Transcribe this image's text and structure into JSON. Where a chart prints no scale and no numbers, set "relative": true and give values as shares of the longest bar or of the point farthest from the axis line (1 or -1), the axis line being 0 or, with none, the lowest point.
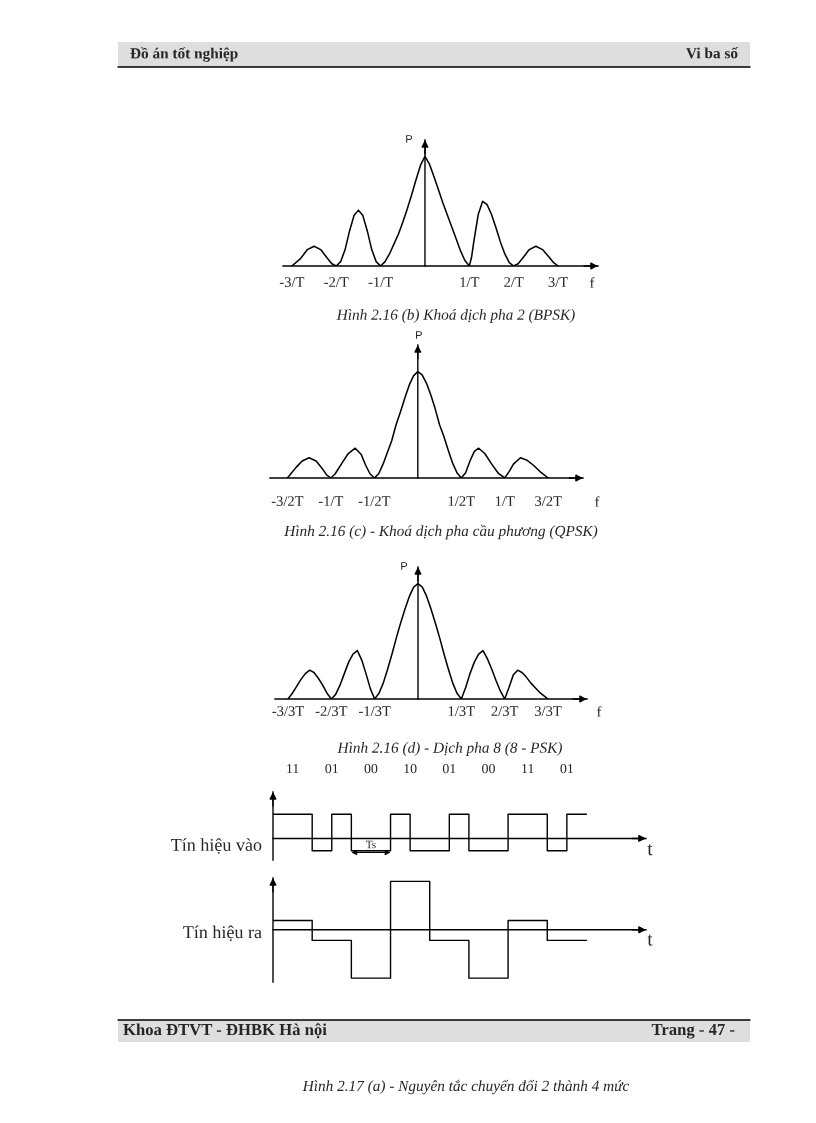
{
  "chart_data": [
    {
      "type": "other",
      "annotations": [
        "Đồ án tốt nghiệp",
        "Vi ba số"
      ]
    },
    {
      "type": "line",
      "title": "Hình 2.16 (b) Khoá dịch pha 2 (BPSK)",
      "xlabel": "f",
      "ylabel": "P",
      "x": [
        -3,
        -2.8,
        -2.65,
        -2.5,
        -2.35,
        -2.2,
        -2.1,
        -2,
        -1.9,
        -1.8,
        -1.7,
        -1.6,
        -1.5,
        -1.4,
        -1.3,
        -1.2,
        -1.1,
        -1,
        -0.9,
        -0.8,
        -0.7,
        -0.6,
        -0.5,
        -0.4,
        -0.3,
        -0.2,
        -0.1,
        0,
        0.1,
        0.2,
        0.3,
        0.4,
        0.5,
        0.6,
        0.7,
        0.8,
        0.9,
        1,
        1.05,
        1.1,
        1.2,
        1.3,
        1.4,
        1.5,
        1.6,
        1.7,
        1.8,
        1.9,
        2,
        2.1,
        2.2,
        2.35,
        2.5,
        2.65,
        2.8,
        2.9,
        3
      ],
      "values": [
        0,
        0.07,
        0.15,
        0.18,
        0.15,
        0.07,
        0.02,
        0,
        0.04,
        0.15,
        0.32,
        0.46,
        0.51,
        0.46,
        0.32,
        0.15,
        0.04,
        0,
        0.04,
        0.11,
        0.2,
        0.29,
        0.4,
        0.52,
        0.65,
        0.79,
        0.92,
        1,
        0.93,
        0.82,
        0.7,
        0.58,
        0.47,
        0.36,
        0.25,
        0.14,
        0.05,
        0,
        0.08,
        0.22,
        0.47,
        0.59,
        0.56,
        0.47,
        0.35,
        0.22,
        0.11,
        0.03,
        0,
        0.02,
        0.07,
        0.15,
        0.18,
        0.15,
        0.08,
        0.03,
        0
      ],
      "color": "#000000",
      "relative": true,
      "xlim": [
        -3.2,
        3.9
      ],
      "xticks": [
        {
          "value": -3,
          "label": "-3/T"
        },
        {
          "value": -2,
          "label": "-2/T"
        },
        {
          "value": -1,
          "label": "-1/T"
        },
        {
          "value": 1,
          "label": "1/T"
        },
        {
          "value": 2,
          "label": "2/T"
        },
        {
          "value": 3,
          "label": "3/T"
        }
      ]
    },
    {
      "type": "line",
      "title": "Hình 2.16 (c) - Khoá dịch pha cầu phương (QPSK)",
      "xlabel": "f",
      "ylabel": "P",
      "x": [
        -1.5,
        -1.4,
        -1.33,
        -1.25,
        -1.17,
        -1.1,
        -1.05,
        -1,
        -0.95,
        -0.88,
        -0.8,
        -0.72,
        -0.65,
        -0.6,
        -0.55,
        -0.5,
        -0.45,
        -0.4,
        -0.35,
        -0.3,
        -0.25,
        -0.2,
        -0.15,
        -0.1,
        -0.05,
        0,
        0.05,
        0.1,
        0.15,
        0.2,
        0.25,
        0.3,
        0.35,
        0.4,
        0.45,
        0.5,
        0.55,
        0.6,
        0.65,
        0.7,
        0.77,
        0.85,
        0.93,
        1,
        1.05,
        1.1,
        1.18,
        1.25,
        1.33,
        1.42,
        1.5
      ],
      "values": [
        0,
        0.1,
        0.16,
        0.19,
        0.16,
        0.09,
        0.03,
        0,
        0.04,
        0.13,
        0.23,
        0.28,
        0.22,
        0.12,
        0.04,
        0,
        0.04,
        0.13,
        0.24,
        0.35,
        0.5,
        0.62,
        0.75,
        0.87,
        0.96,
        1,
        0.97,
        0.89,
        0.78,
        0.65,
        0.5,
        0.39,
        0.26,
        0.14,
        0.05,
        0,
        0.05,
        0.16,
        0.25,
        0.28,
        0.23,
        0.13,
        0.04,
        0,
        0.06,
        0.13,
        0.19,
        0.17,
        0.12,
        0.05,
        0
      ],
      "color": "#000000",
      "relative": true,
      "xlim": [
        -1.7,
        1.9
      ],
      "xticks": [
        {
          "value": -1.5,
          "label": "-3/2T"
        },
        {
          "value": -1,
          "label": "-1/T"
        },
        {
          "value": -0.5,
          "label": "-1/2T"
        },
        {
          "value": 0.5,
          "label": "1/2T"
        },
        {
          "value": 1,
          "label": "1/T"
        },
        {
          "value": 1.5,
          "label": "3/2T"
        }
      ]
    },
    {
      "type": "line",
      "title": "Hình 2.16 (d) - Dịch pha 8 (8 - PSK)",
      "xlabel": "f",
      "ylabel": "P",
      "categories": [
        "-3/3T",
        null,
        null,
        null,
        null,
        null,
        null,
        null,
        null,
        null,
        "-2/3T",
        null,
        null,
        null,
        null,
        null,
        null,
        null,
        null,
        null,
        "-1/3T",
        null,
        null,
        null,
        null,
        null,
        null,
        null,
        null,
        null,
        null,
        null,
        null,
        null,
        null,
        null,
        null,
        null,
        null,
        null,
        "1/3T",
        null,
        null,
        null,
        null,
        null,
        null,
        null,
        null,
        null,
        "2/3T",
        null,
        null,
        null,
        null,
        null,
        null,
        null,
        null,
        null,
        "3/3T"
      ],
      "values": [
        0,
        0.05,
        0.11,
        0.17,
        0.22,
        0.25,
        0.23,
        0.18,
        0.12,
        0.05,
        0,
        0.04,
        0.12,
        0.22,
        0.32,
        0.39,
        0.42,
        0.34,
        0.22,
        0.09,
        0,
        0.05,
        0.14,
        0.26,
        0.39,
        0.53,
        0.66,
        0.78,
        0.89,
        0.97,
        1,
        0.97,
        0.89,
        0.78,
        0.66,
        0.53,
        0.39,
        0.26,
        0.14,
        0.05,
        0,
        0.1,
        0.22,
        0.32,
        0.39,
        0.42,
        0.35,
        0.26,
        0.16,
        0.07,
        0,
        0.1,
        0.21,
        0.25,
        0.23,
        0.19,
        0.14,
        0.1,
        0.06,
        0.03,
        0
      ],
      "color": "#000000",
      "relative": true
    },
    {
      "type": "step",
      "xlabel": "t",
      "ylabel": "Tín hiệu vào",
      "categories": [
        null,
        null,
        null,
        null,
        null,
        null,
        null,
        null,
        null,
        null,
        null,
        null,
        null,
        null,
        null,
        null,
        null
      ],
      "values": [
        1,
        1,
        -0.51,
        1,
        -0.51,
        -0.51,
        1,
        -0.51,
        -0.51,
        1,
        -0.51,
        -0.51,
        1,
        1,
        -0.51,
        1,
        1
      ],
      "color": "#000000",
      "relative": true,
      "annotations": [
        "11",
        "01",
        "00",
        "10",
        "01",
        "00",
        "11",
        "01",
        "Ts"
      ]
    },
    {
      "type": "step",
      "xlabel": "t",
      "ylabel": "Tín hiệu ra",
      "title": "Hình 2.17 (a) - Nguyên tắc chuyển đổi 2 thành 4 mức",
      "categories": [
        null,
        null,
        null,
        null,
        null,
        null,
        null,
        null,
        null
      ],
      "values": [
        0.19,
        -0.22,
        -1,
        1,
        -0.22,
        -1,
        0.19,
        -0.22,
        -0.22
      ],
      "color": "#000000",
      "relative": true
    },
    {
      "type": "other",
      "annotations": [
        "Khoa ĐTVT - ĐHBK Hà nội",
        "Trang - 47 -"
      ]
    }
  ]
}
